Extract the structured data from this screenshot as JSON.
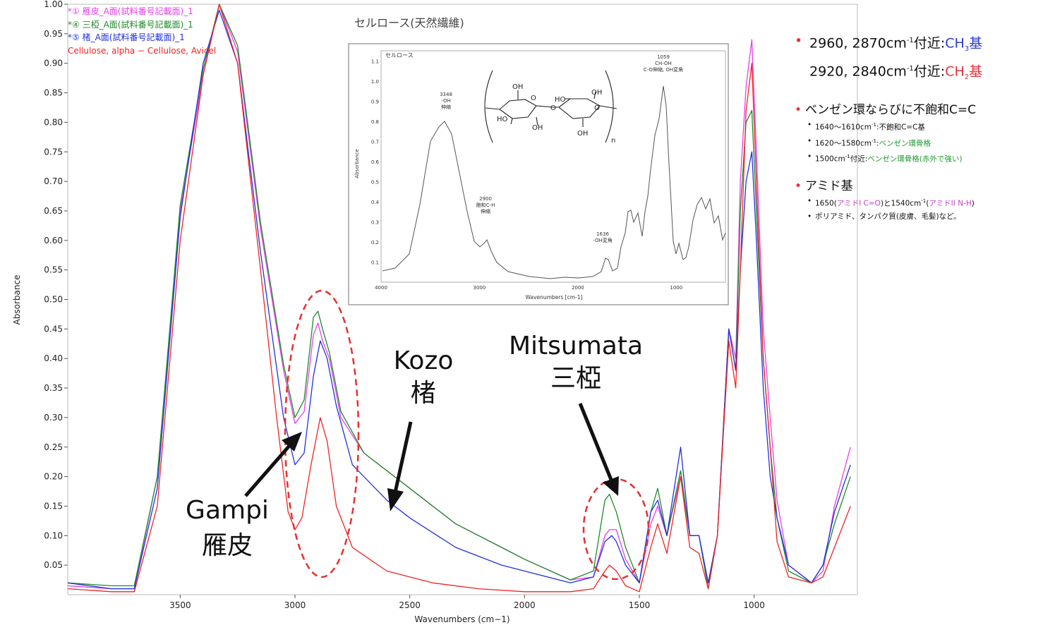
{
  "chart_data": {
    "type": "line",
    "xlabel": "Wavenumbers (cm−1)",
    "ylabel": "Absorbance",
    "xlim": [
      3990,
      550
    ],
    "ylim": [
      0,
      1.0
    ],
    "x_reversed": true,
    "x_ticks": [
      "3500",
      "3000",
      "2500",
      "2000",
      "1500",
      "1000"
    ],
    "y_ticks": [
      "1.00",
      "0.95",
      "0.90",
      "0.85",
      "0.80",
      "0.75",
      "0.70",
      "0.65",
      "0.60",
      "0.55",
      "0.50",
      "0.45",
      "0.40",
      "0.35",
      "0.30",
      "0.25",
      "0.20",
      "0.15",
      "0.10",
      "0.05"
    ],
    "legend_position": "top-left",
    "series": [
      {
        "name": "*① 雁皮_A面(試料番号記載面)_1",
        "color": "#e83fe8",
        "points": [
          [
            3990,
            0.015
          ],
          [
            3800,
            0.01
          ],
          [
            3700,
            0.01
          ],
          [
            3600,
            0.2
          ],
          [
            3500,
            0.65
          ],
          [
            3400,
            0.88
          ],
          [
            3330,
            1.0
          ],
          [
            3250,
            0.92
          ],
          [
            3150,
            0.62
          ],
          [
            3050,
            0.38
          ],
          [
            3000,
            0.29
          ],
          [
            2960,
            0.31
          ],
          [
            2920,
            0.44
          ],
          [
            2900,
            0.46
          ],
          [
            2880,
            0.43
          ],
          [
            2850,
            0.4
          ],
          [
            2800,
            0.3
          ],
          [
            2700,
            0.24
          ],
          [
            2500,
            0.18
          ],
          [
            2300,
            0.12
          ],
          [
            2100,
            0.08
          ],
          [
            2000,
            0.06
          ],
          [
            1800,
            0.025
          ],
          [
            1700,
            0.03
          ],
          [
            1650,
            0.1
          ],
          [
            1630,
            0.11
          ],
          [
            1600,
            0.11
          ],
          [
            1560,
            0.06
          ],
          [
            1500,
            0.02
          ],
          [
            1450,
            0.12
          ],
          [
            1420,
            0.15
          ],
          [
            1380,
            0.1
          ],
          [
            1320,
            0.2
          ],
          [
            1280,
            0.1
          ],
          [
            1240,
            0.1
          ],
          [
            1200,
            0.02
          ],
          [
            1160,
            0.1
          ],
          [
            1110,
            0.45
          ],
          [
            1080,
            0.4
          ],
          [
            1060,
            0.7
          ],
          [
            1035,
            0.86
          ],
          [
            1010,
            0.94
          ],
          [
            990,
            0.75
          ],
          [
            960,
            0.45
          ],
          [
            930,
            0.3
          ],
          [
            900,
            0.16
          ],
          [
            850,
            0.05
          ],
          [
            750,
            0.02
          ],
          [
            700,
            0.04
          ],
          [
            650,
            0.15
          ],
          [
            580,
            0.25
          ]
        ]
      },
      {
        "name": "*④ 三椏_A面(試料番号記載面)_1",
        "color": "#1e8a2a",
        "points": [
          [
            3990,
            0.02
          ],
          [
            3800,
            0.015
          ],
          [
            3700,
            0.015
          ],
          [
            3600,
            0.2
          ],
          [
            3500,
            0.66
          ],
          [
            3400,
            0.89
          ],
          [
            3330,
            1.0
          ],
          [
            3250,
            0.93
          ],
          [
            3150,
            0.63
          ],
          [
            3050,
            0.39
          ],
          [
            3000,
            0.3
          ],
          [
            2960,
            0.33
          ],
          [
            2920,
            0.47
          ],
          [
            2900,
            0.48
          ],
          [
            2880,
            0.45
          ],
          [
            2850,
            0.41
          ],
          [
            2800,
            0.31
          ],
          [
            2700,
            0.24
          ],
          [
            2500,
            0.18
          ],
          [
            2300,
            0.12
          ],
          [
            2100,
            0.08
          ],
          [
            2000,
            0.06
          ],
          [
            1800,
            0.025
          ],
          [
            1700,
            0.04
          ],
          [
            1650,
            0.16
          ],
          [
            1630,
            0.17
          ],
          [
            1600,
            0.14
          ],
          [
            1560,
            0.08
          ],
          [
            1500,
            0.02
          ],
          [
            1450,
            0.14
          ],
          [
            1420,
            0.18
          ],
          [
            1380,
            0.1
          ],
          [
            1320,
            0.21
          ],
          [
            1280,
            0.1
          ],
          [
            1240,
            0.1
          ],
          [
            1200,
            0.01
          ],
          [
            1160,
            0.1
          ],
          [
            1110,
            0.45
          ],
          [
            1080,
            0.38
          ],
          [
            1060,
            0.65
          ],
          [
            1035,
            0.8
          ],
          [
            1010,
            0.82
          ],
          [
            990,
            0.65
          ],
          [
            960,
            0.4
          ],
          [
            930,
            0.25
          ],
          [
            900,
            0.13
          ],
          [
            850,
            0.04
          ],
          [
            750,
            0.02
          ],
          [
            700,
            0.05
          ],
          [
            650,
            0.12
          ],
          [
            580,
            0.2
          ]
        ]
      },
      {
        "name": "*⑤ 楮_A面(試料番号記載面)_1",
        "color": "#2230e0",
        "points": [
          [
            3990,
            0.02
          ],
          [
            3800,
            0.01
          ],
          [
            3700,
            0.01
          ],
          [
            3600,
            0.18
          ],
          [
            3500,
            0.64
          ],
          [
            3400,
            0.9
          ],
          [
            3330,
            0.99
          ],
          [
            3250,
            0.9
          ],
          [
            3150,
            0.58
          ],
          [
            3050,
            0.3
          ],
          [
            3000,
            0.22
          ],
          [
            2960,
            0.24
          ],
          [
            2920,
            0.37
          ],
          [
            2890,
            0.43
          ],
          [
            2860,
            0.4
          ],
          [
            2820,
            0.32
          ],
          [
            2750,
            0.22
          ],
          [
            2600,
            0.16
          ],
          [
            2500,
            0.13
          ],
          [
            2300,
            0.08
          ],
          [
            2100,
            0.05
          ],
          [
            2000,
            0.04
          ],
          [
            1800,
            0.02
          ],
          [
            1700,
            0.03
          ],
          [
            1650,
            0.09
          ],
          [
            1620,
            0.1
          ],
          [
            1600,
            0.09
          ],
          [
            1560,
            0.05
          ],
          [
            1500,
            0.02
          ],
          [
            1450,
            0.14
          ],
          [
            1420,
            0.16
          ],
          [
            1380,
            0.1
          ],
          [
            1320,
            0.25
          ],
          [
            1280,
            0.1
          ],
          [
            1240,
            0.1
          ],
          [
            1200,
            0.02
          ],
          [
            1160,
            0.1
          ],
          [
            1110,
            0.45
          ],
          [
            1080,
            0.38
          ],
          [
            1060,
            0.55
          ],
          [
            1035,
            0.7
          ],
          [
            1010,
            0.75
          ],
          [
            990,
            0.6
          ],
          [
            960,
            0.35
          ],
          [
            930,
            0.2
          ],
          [
            900,
            0.13
          ],
          [
            850,
            0.05
          ],
          [
            750,
            0.02
          ],
          [
            700,
            0.05
          ],
          [
            650,
            0.14
          ],
          [
            580,
            0.22
          ]
        ]
      },
      {
        "name": "Cellulose, alpha − Cellulose, Avicel",
        "color": "#ee2424",
        "points": [
          [
            3990,
            0.01
          ],
          [
            3800,
            0.005
          ],
          [
            3700,
            0.005
          ],
          [
            3600,
            0.15
          ],
          [
            3500,
            0.6
          ],
          [
            3400,
            0.88
          ],
          [
            3330,
            1.0
          ],
          [
            3250,
            0.9
          ],
          [
            3150,
            0.55
          ],
          [
            3080,
            0.3
          ],
          [
            3030,
            0.14
          ],
          [
            3000,
            0.11
          ],
          [
            2970,
            0.13
          ],
          [
            2930,
            0.22
          ],
          [
            2890,
            0.3
          ],
          [
            2860,
            0.26
          ],
          [
            2820,
            0.15
          ],
          [
            2750,
            0.08
          ],
          [
            2600,
            0.04
          ],
          [
            2400,
            0.02
          ],
          [
            2200,
            0.01
          ],
          [
            2000,
            0.005
          ],
          [
            1800,
            0.005
          ],
          [
            1700,
            0.01
          ],
          [
            1650,
            0.04
          ],
          [
            1630,
            0.05
          ],
          [
            1600,
            0.04
          ],
          [
            1560,
            0.015
          ],
          [
            1500,
            0.005
          ],
          [
            1450,
            0.08
          ],
          [
            1420,
            0.12
          ],
          [
            1380,
            0.07
          ],
          [
            1320,
            0.2
          ],
          [
            1280,
            0.08
          ],
          [
            1240,
            0.07
          ],
          [
            1200,
            0.01
          ],
          [
            1160,
            0.1
          ],
          [
            1110,
            0.43
          ],
          [
            1080,
            0.35
          ],
          [
            1060,
            0.55
          ],
          [
            1035,
            0.82
          ],
          [
            1010,
            0.9
          ],
          [
            990,
            0.7
          ],
          [
            960,
            0.4
          ],
          [
            930,
            0.25
          ],
          [
            900,
            0.09
          ],
          [
            850,
            0.03
          ],
          [
            750,
            0.02
          ],
          [
            700,
            0.03
          ],
          [
            650,
            0.08
          ],
          [
            580,
            0.15
          ]
        ]
      }
    ]
  },
  "inset": {
    "caption": "セルロース(天然繊維)",
    "title": "セルロース",
    "xlabel": "Wavenumbers [cm-1]",
    "ylabel": "Absorbance",
    "x_ticks": [
      "4000",
      "3000",
      "2000",
      "1000"
    ],
    "y_ticks": [
      "1.1",
      "1.0",
      "0.9",
      "0.8",
      "0.7",
      "0.6",
      "0.5",
      "0.4",
      "0.3",
      "0.2",
      "0.1"
    ],
    "annotations": [
      {
        "text": "3348\n-OH\n伸縮"
      },
      {
        "text": "2900\n飽和C-H\n伸縮"
      },
      {
        "text": "1636\n-OH変角"
      },
      {
        "text": "1059\nCH-OH\nC-O伸縮, OH変角"
      }
    ],
    "structure_labels": [
      "OH",
      "O",
      "HO",
      "O",
      "HO",
      "OH",
      "O",
      "HO",
      "OH",
      "OH",
      "n"
    ]
  },
  "callouts": [
    {
      "lines": [
        "Gampi",
        "雁皮"
      ]
    },
    {
      "lines": [
        "Kozo",
        "楮"
      ]
    },
    {
      "lines": [
        "Mitsumata",
        "三椏"
      ]
    }
  ],
  "side_notes": {
    "line1": {
      "pre": "2960, 2870cm",
      "sup": "-1",
      "mid": "付近:",
      "grp": "CH",
      "sub": "3",
      "post": "基"
    },
    "line2": {
      "pre": "2920, 2840cm",
      "sup": "-1",
      "mid": "付近:",
      "grp": "CH",
      "sub": "2",
      "post": "基"
    },
    "heading2": "ベンゼン環ならびに不飽和C=C",
    "items2": [
      {
        "a": "1640～1610cm",
        "sup": "-1",
        "b": ":不飽和C=C基",
        "c": ""
      },
      {
        "a": "1620～1580cm",
        "sup": "-1",
        "b": ":",
        "c": "ベンゼン環骨格"
      },
      {
        "a": "1500cm",
        "sup": "-1",
        "b": "付近:",
        "c": "ベンゼン環骨格(赤外で強い)"
      }
    ],
    "heading3": "アミド基",
    "items3": [
      {
        "a": "1650(",
        "m1": "アミドI C=O",
        "b": ")と1540cm",
        "sup": "-1",
        "c": "(",
        "m2": "アミドII N-H",
        "d": ")"
      },
      {
        "text": "ポリアミド、タンパク質(皮膚、毛髪)など。"
      }
    ]
  }
}
